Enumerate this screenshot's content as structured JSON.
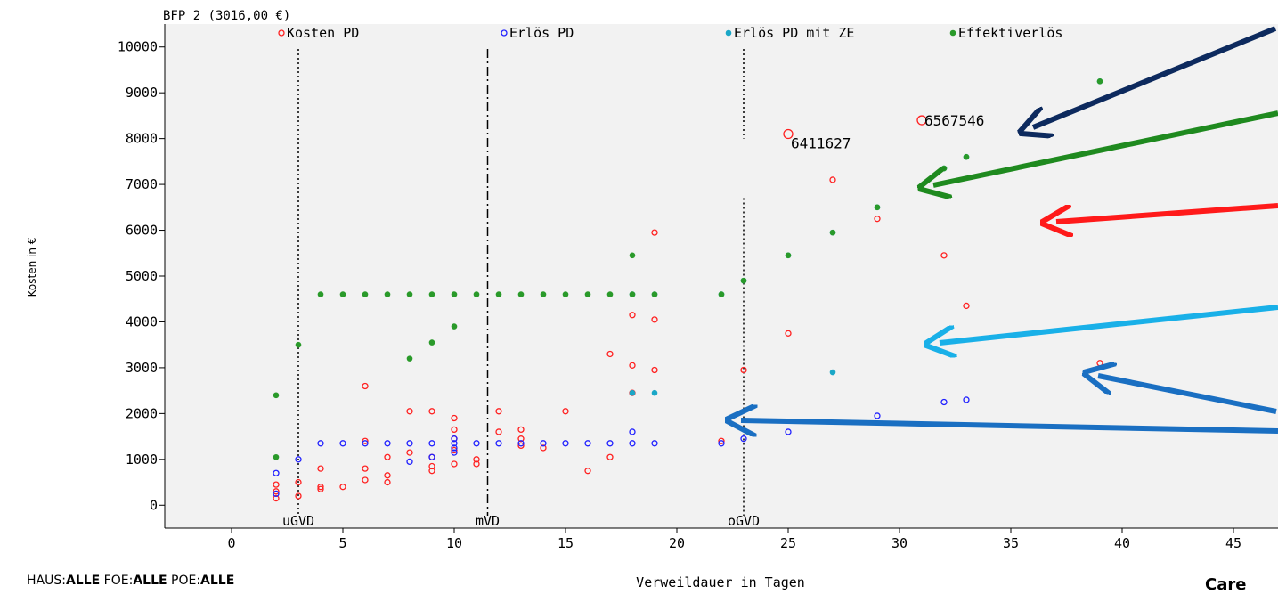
{
  "chart_data": {
    "type": "scatter",
    "subtitle": "BFP 2 (3016,00 €)",
    "xlabel": "Verweildauer in Tagen",
    "ylabel": "Kosten in €",
    "xlim": [
      -3,
      47
    ],
    "ylim": [
      -500,
      10500
    ],
    "x_ticks": [
      0,
      5,
      10,
      15,
      20,
      25,
      30,
      35,
      40,
      45
    ],
    "y_ticks": [
      0,
      1000,
      2000,
      3000,
      4000,
      5000,
      6000,
      7000,
      8000,
      9000,
      10000
    ],
    "grid": false,
    "legend_position": "top",
    "colors": {
      "kosten": "#ff2020",
      "erloes": "#2020ff",
      "erloes_ze": "#1aa7c7",
      "effektiv": "#2a9a2a",
      "plot_bg": "#f2f2f2"
    },
    "reference_lines": [
      {
        "x": 3,
        "label": "uGVD",
        "style": "dotted"
      },
      {
        "x": 11.5,
        "label": "mVD",
        "style": "dashdot"
      },
      {
        "x": 23,
        "label": "oGVD",
        "style": "dotted"
      }
    ],
    "annotations": [
      {
        "x": 25,
        "y": 8100,
        "text": "6411627"
      },
      {
        "x": 31,
        "y": 8400,
        "text": "6567546"
      }
    ],
    "series": [
      {
        "name": "Kosten PD",
        "marker": "open",
        "color": "#ff2020",
        "points": [
          [
            2,
            150
          ],
          [
            2,
            300
          ],
          [
            2,
            450
          ],
          [
            3,
            200
          ],
          [
            3,
            500
          ],
          [
            4,
            350
          ],
          [
            4,
            400
          ],
          [
            4,
            800
          ],
          [
            5,
            400
          ],
          [
            6,
            550
          ],
          [
            6,
            800
          ],
          [
            6,
            1400
          ],
          [
            6,
            2600
          ],
          [
            7,
            500
          ],
          [
            7,
            650
          ],
          [
            7,
            1050
          ],
          [
            8,
            1150
          ],
          [
            8,
            2050
          ],
          [
            9,
            750
          ],
          [
            9,
            850
          ],
          [
            9,
            1050
          ],
          [
            9,
            2050
          ],
          [
            10,
            900
          ],
          [
            10,
            1200
          ],
          [
            10,
            1450
          ],
          [
            10,
            1650
          ],
          [
            10,
            1900
          ],
          [
            11,
            900
          ],
          [
            11,
            1000
          ],
          [
            12,
            1600
          ],
          [
            12,
            2050
          ],
          [
            13,
            1300
          ],
          [
            13,
            1450
          ],
          [
            13,
            1650
          ],
          [
            14,
            1250
          ],
          [
            15,
            2050
          ],
          [
            16,
            750
          ],
          [
            17,
            1050
          ],
          [
            17,
            3300
          ],
          [
            18,
            2450
          ],
          [
            18,
            3050
          ],
          [
            18,
            4150
          ],
          [
            19,
            2950
          ],
          [
            19,
            4050
          ],
          [
            19,
            5950
          ],
          [
            22,
            1400
          ],
          [
            23,
            2950
          ],
          [
            25,
            3750
          ],
          [
            25,
            8100
          ],
          [
            27,
            7100
          ],
          [
            29,
            6250
          ],
          [
            31,
            8400
          ],
          [
            32,
            5450
          ],
          [
            33,
            4350
          ],
          [
            39,
            3100
          ]
        ]
      },
      {
        "name": "Erlös PD",
        "marker": "open",
        "color": "#2020ff",
        "points": [
          [
            2,
            250
          ],
          [
            2,
            700
          ],
          [
            3,
            1000
          ],
          [
            4,
            1350
          ],
          [
            5,
            1350
          ],
          [
            6,
            1350
          ],
          [
            7,
            1350
          ],
          [
            8,
            950
          ],
          [
            8,
            1350
          ],
          [
            9,
            1050
          ],
          [
            9,
            1350
          ],
          [
            10,
            1150
          ],
          [
            10,
            1250
          ],
          [
            10,
            1350
          ],
          [
            10,
            1450
          ],
          [
            11,
            1350
          ],
          [
            12,
            1350
          ],
          [
            13,
            1350
          ],
          [
            14,
            1350
          ],
          [
            15,
            1350
          ],
          [
            16,
            1350
          ],
          [
            17,
            1350
          ],
          [
            18,
            1350
          ],
          [
            18,
            1600
          ],
          [
            19,
            1350
          ],
          [
            22,
            1350
          ],
          [
            23,
            1450
          ],
          [
            25,
            1600
          ],
          [
            29,
            1950
          ],
          [
            32,
            2250
          ],
          [
            33,
            2300
          ]
        ]
      },
      {
        "name": "Erlös PD mit ZE",
        "marker": "filled",
        "color": "#1aa7c7",
        "points": [
          [
            18,
            2450
          ],
          [
            18,
            4600
          ],
          [
            19,
            2450
          ],
          [
            19,
            4600
          ],
          [
            22,
            4600
          ],
          [
            23,
            4900
          ],
          [
            25,
            5450
          ],
          [
            27,
            2900
          ],
          [
            27,
            5950
          ],
          [
            29,
            6500
          ],
          [
            32,
            7350
          ],
          [
            33,
            7600
          ],
          [
            39,
            9250
          ]
        ]
      },
      {
        "name": "Effektiverlös",
        "marker": "filled",
        "color": "#2a9a2a",
        "points": [
          [
            2,
            1050
          ],
          [
            2,
            2400
          ],
          [
            3,
            3500
          ],
          [
            4,
            4600
          ],
          [
            5,
            4600
          ],
          [
            6,
            4600
          ],
          [
            7,
            4600
          ],
          [
            8,
            3200
          ],
          [
            8,
            4600
          ],
          [
            9,
            3550
          ],
          [
            9,
            4600
          ],
          [
            10,
            3900
          ],
          [
            10,
            4600
          ],
          [
            11,
            4600
          ],
          [
            12,
            4600
          ],
          [
            13,
            4600
          ],
          [
            14,
            4600
          ],
          [
            15,
            4600
          ],
          [
            16,
            4600
          ],
          [
            17,
            4600
          ],
          [
            18,
            4600
          ],
          [
            18,
            5450
          ],
          [
            19,
            4600
          ],
          [
            22,
            4600
          ],
          [
            23,
            4900
          ],
          [
            25,
            5450
          ],
          [
            27,
            5950
          ],
          [
            29,
            6500
          ],
          [
            32,
            7350
          ],
          [
            33,
            7600
          ],
          [
            39,
            9250
          ]
        ]
      }
    ]
  },
  "footer": {
    "filter_haus_label": "HAUS:",
    "filter_haus_value": "ALLE",
    "filter_foe_label": "FOE:",
    "filter_foe_value": "ALLE",
    "filter_poe_label": "POE:",
    "filter_poe_value": "ALLE",
    "logo_text": "Care"
  },
  "overlay_arrows": [
    {
      "color": "#0d2a5e",
      "from": "top-right",
      "target": "Kosten PD outliers"
    },
    {
      "color": "#1f8a1f",
      "target": "Effektiverlös"
    },
    {
      "color": "#ff1a1a",
      "target": "Kosten PD"
    },
    {
      "color": "#19b0e8",
      "target": "Erlös PD mit ZE"
    },
    {
      "color": "#1a6fc2",
      "target": "Erlös PD"
    }
  ]
}
